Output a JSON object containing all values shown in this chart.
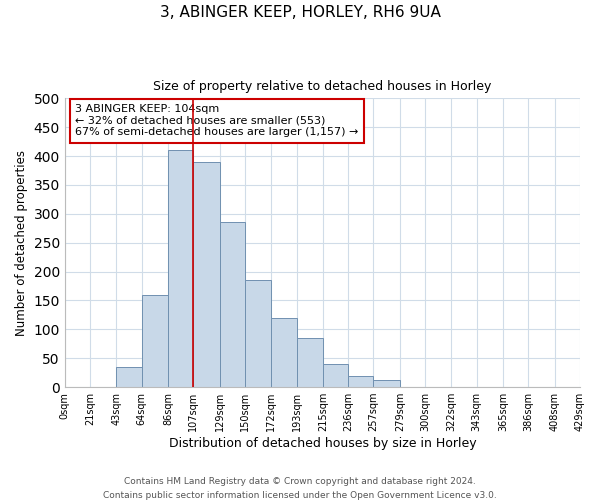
{
  "title1": "3, ABINGER KEEP, HORLEY, RH6 9UA",
  "title2": "Size of property relative to detached houses in Horley",
  "xlabel": "Distribution of detached houses by size in Horley",
  "ylabel": "Number of detached properties",
  "bin_edges": [
    0,
    21,
    43,
    64,
    86,
    107,
    129,
    150,
    172,
    193,
    215,
    236,
    257,
    279,
    300,
    322,
    343,
    365,
    386,
    408,
    429
  ],
  "bin_values": [
    0,
    0,
    35,
    160,
    410,
    390,
    285,
    185,
    120,
    85,
    40,
    20,
    12,
    0,
    0,
    0,
    0,
    0,
    0,
    0
  ],
  "bar_color": "#c8d8e8",
  "bar_edge_color": "#7090b0",
  "vline_color": "#cc0000",
  "vline_x": 107,
  "annotation_text": "3 ABINGER KEEP: 104sqm\n← 32% of detached houses are smaller (553)\n67% of semi-detached houses are larger (1,157) →",
  "annotation_box_edge": "#cc0000",
  "ylim": [
    0,
    500
  ],
  "yticks": [
    0,
    50,
    100,
    150,
    200,
    250,
    300,
    350,
    400,
    450,
    500
  ],
  "tick_labels": [
    "0sqm",
    "21sqm",
    "43sqm",
    "64sqm",
    "86sqm",
    "107sqm",
    "129sqm",
    "150sqm",
    "172sqm",
    "193sqm",
    "215sqm",
    "236sqm",
    "257sqm",
    "279sqm",
    "300sqm",
    "322sqm",
    "343sqm",
    "365sqm",
    "386sqm",
    "408sqm",
    "429sqm"
  ],
  "footer1": "Contains HM Land Registry data © Crown copyright and database right 2024.",
  "footer2": "Contains public sector information licensed under the Open Government Licence v3.0.",
  "bg_color": "#ffffff",
  "grid_color": "#d0dce8"
}
